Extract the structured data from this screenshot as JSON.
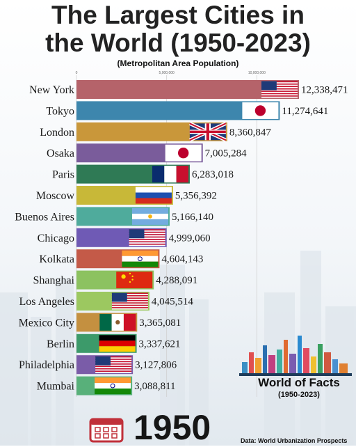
{
  "title_line1": "The Largest Cities in",
  "title_line2": "the World (1950-2023)",
  "subtitle": "(Metropolitan Area Population)",
  "year": "1950",
  "brand": {
    "name": "World of Facts",
    "years": "(1950-2023)"
  },
  "source": "Data: World Urbanization Prospects",
  "chart_data": {
    "type": "bar",
    "orientation": "horizontal",
    "title": "The Largest Cities in the World (1950-2023)",
    "subtitle": "(Metropolitan Area Population)",
    "xlim": [
      0,
      12338471
    ],
    "ticks": [
      {
        "value": 0,
        "label": "0"
      },
      {
        "value": 5000000,
        "label": "5,000,000"
      },
      {
        "value": 10000000,
        "label": "10,000,000"
      }
    ],
    "grid": true,
    "categories": [
      "New York",
      "Tokyo",
      "London",
      "Osaka",
      "Paris",
      "Moscow",
      "Buenos Aires",
      "Chicago",
      "Kolkata",
      "Shanghai",
      "Los Angeles",
      "Mexico City",
      "Berlin",
      "Philadelphia",
      "Mumbai"
    ],
    "values": [
      12338471,
      11274641,
      8360847,
      7005284,
      6283018,
      5356392,
      5166140,
      4999060,
      4604143,
      4288091,
      4045514,
      3365081,
      3337621,
      3127806,
      3088811
    ],
    "value_labels": [
      "12,338,471",
      "11,274,641",
      "8,360,847",
      "7,005,284",
      "6,283,018",
      "5,356,392",
      "5,166,140",
      "4,999,060",
      "4,604,143",
      "4,288,091",
      "4,045,514",
      "3,365,081",
      "3,337,621",
      "3,127,806",
      "3,088,811"
    ],
    "colors": [
      "#b5636a",
      "#3d86ad",
      "#c9973a",
      "#7a5c9b",
      "#2f7a55",
      "#c8b838",
      "#4fab9c",
      "#6f5ab5",
      "#c45a48",
      "#8cc260",
      "#9cc860",
      "#c49040",
      "#3c9a6a",
      "#7a5ca8",
      "#58b07a"
    ],
    "flags": [
      "us",
      "jp",
      "gb",
      "jp",
      "fr",
      "ru",
      "ar",
      "us",
      "in",
      "cn",
      "us",
      "mx",
      "de",
      "us",
      "in"
    ]
  }
}
